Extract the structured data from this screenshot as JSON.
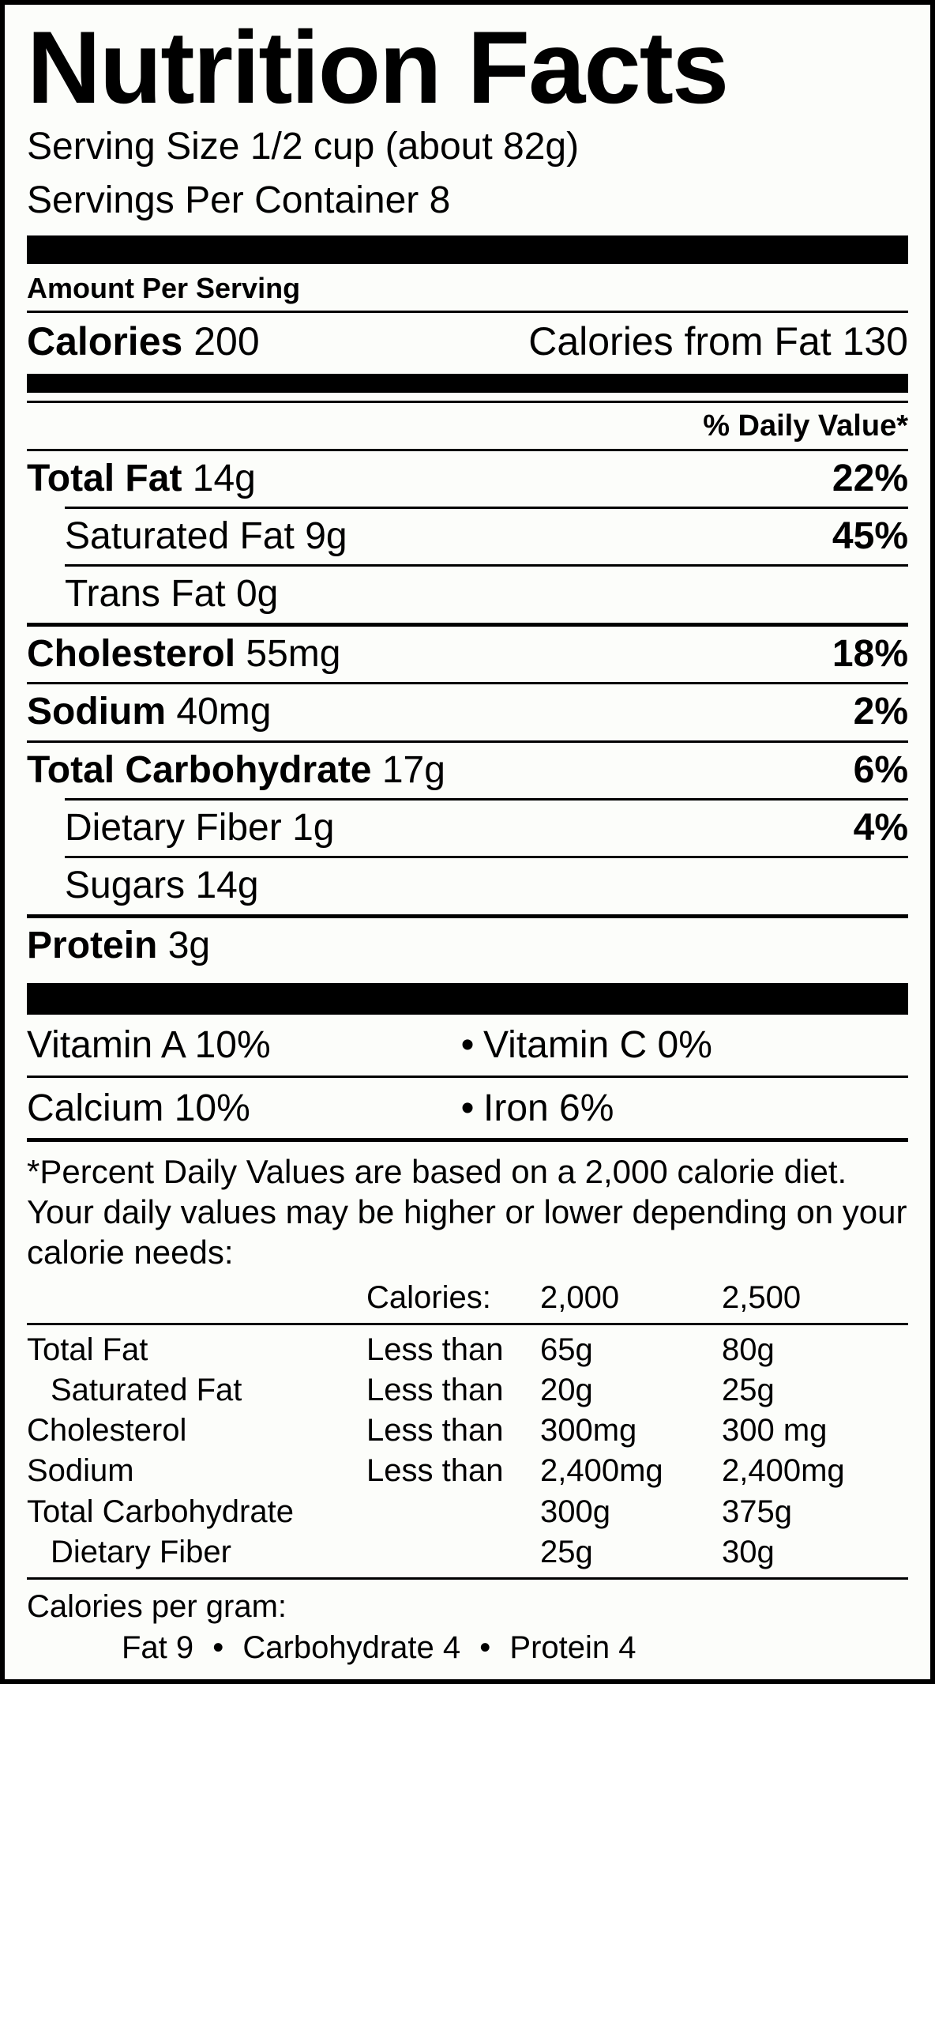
{
  "title": "Nutrition Facts",
  "serving_size_label": "Serving Size",
  "serving_size_value": "1/2 cup (about 82g)",
  "servings_per_label": "Servings Per Container",
  "servings_per_value": "8",
  "amount_per_serving_label": "Amount Per Serving",
  "calories_label": "Calories",
  "calories_value": "200",
  "calories_from_fat_label": "Calories from Fat",
  "calories_from_fat_value": "130",
  "pct_dv_header": "% Daily Value*",
  "nutrients": {
    "total_fat_label": "Total Fat",
    "total_fat_value": "14g",
    "total_fat_pct": "22%",
    "sat_fat_label": "Saturated Fat",
    "sat_fat_value": "9g",
    "sat_fat_pct": "45%",
    "trans_fat_label": "Trans Fat",
    "trans_fat_value": "0g",
    "cholesterol_label": "Cholesterol",
    "cholesterol_value": "55mg",
    "cholesterol_pct": "18%",
    "sodium_label": "Sodium",
    "sodium_value": "40mg",
    "sodium_pct": "2%",
    "carb_label": "Total Carbohydrate",
    "carb_value": "17g",
    "carb_pct": "6%",
    "fiber_label": "Dietary Fiber",
    "fiber_value": "1g",
    "fiber_pct": "4%",
    "sugars_label": "Sugars",
    "sugars_value": "14g",
    "protein_label": "Protein",
    "protein_value": "3g"
  },
  "vitamins": {
    "vit_a": "Vitamin A 10%",
    "vit_c": "Vitamin C 0%",
    "calcium": "Calcium 10%",
    "iron": "Iron 6%"
  },
  "footnote_text": "*Percent Daily Values are based on a 2,000 calorie diet. Your daily values may be higher or lower depending on your calorie needs:",
  "ref_table": {
    "header": {
      "c2": "Calories:",
      "c3": "2,000",
      "c4": "2,500"
    },
    "rows": [
      {
        "c1": "Total Fat",
        "c2": "Less than",
        "c3": "65g",
        "c4": "80g",
        "indent": false
      },
      {
        "c1": "Saturated Fat",
        "c2": "Less than",
        "c3": "20g",
        "c4": "25g",
        "indent": true
      },
      {
        "c1": "Cholesterol",
        "c2": "Less than",
        "c3": "300mg",
        "c4": "300 mg",
        "indent": false
      },
      {
        "c1": "Sodium",
        "c2": "Less than",
        "c3": "2,400mg",
        "c4": "2,400mg",
        "indent": false
      },
      {
        "c1": "Total Carbohydrate",
        "c2": "",
        "c3": "300g",
        "c4": "375g",
        "indent": false
      },
      {
        "c1": "Dietary Fiber",
        "c2": "",
        "c3": "25g",
        "c4": "30g",
        "indent": true
      }
    ]
  },
  "cpg": {
    "heading": "Calories per gram:",
    "fat": "Fat 9",
    "carb": "Carbohydrate 4",
    "protein": "Protein 4"
  },
  "colors": {
    "border": "#000000",
    "background": "#fcfdfa",
    "text": "#000000"
  }
}
